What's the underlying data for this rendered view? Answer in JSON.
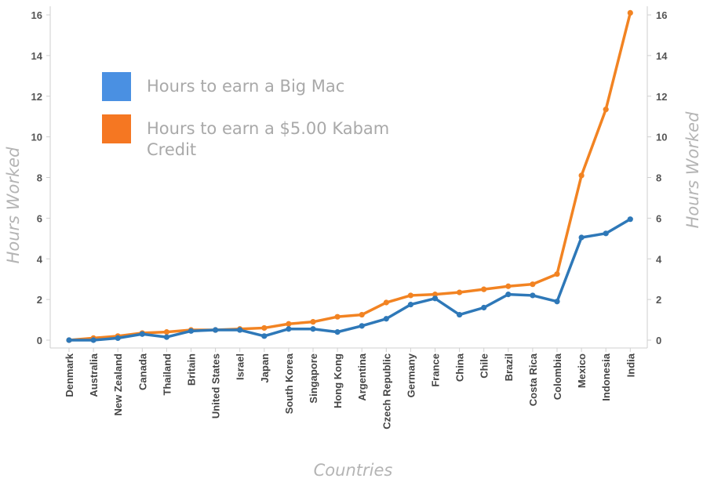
{
  "chart_data": {
    "type": "line",
    "title": "",
    "xlabel": "Countries",
    "ylabel": "Hours Worked",
    "ylim": [
      0,
      16
    ],
    "yticks": [
      0,
      2,
      4,
      6,
      8,
      10,
      12,
      14,
      16
    ],
    "grid": false,
    "legend_position": "top-left",
    "categories": [
      "Denmark",
      "Australia",
      "New Zealand",
      "Canada",
      "Thailand",
      "Britain",
      "United States",
      "Israel",
      "Japan",
      "South Korea",
      "Singapore",
      "Hong Kong",
      "Argentina",
      "Czech Republic",
      "Germany",
      "France",
      "China",
      "Chile",
      "Brazil",
      "Costa Rica",
      "Colombia",
      "Mexico",
      "Indonesia",
      "India"
    ],
    "series": [
      {
        "name": "Hours to earn a Big Mac",
        "color": "#2e78b8",
        "legend_color": "#4a90e2",
        "values": [
          0.0,
          0.0,
          0.1,
          0.3,
          0.15,
          0.45,
          0.5,
          0.5,
          0.2,
          0.55,
          0.55,
          0.4,
          0.7,
          1.05,
          1.75,
          2.05,
          1.25,
          1.6,
          2.25,
          2.2,
          1.9,
          5.05,
          5.25,
          5.95
        ]
      },
      {
        "name": "Hours to earn a $5.00 Kabam Credit",
        "color": "#f28322",
        "legend_color": "#f57722",
        "values": [
          0.0,
          0.1,
          0.2,
          0.35,
          0.4,
          0.5,
          0.5,
          0.55,
          0.6,
          0.8,
          0.9,
          1.15,
          1.25,
          1.85,
          2.2,
          2.25,
          2.35,
          2.5,
          2.65,
          2.75,
          3.25,
          8.1,
          11.35,
          16.1
        ]
      }
    ]
  }
}
